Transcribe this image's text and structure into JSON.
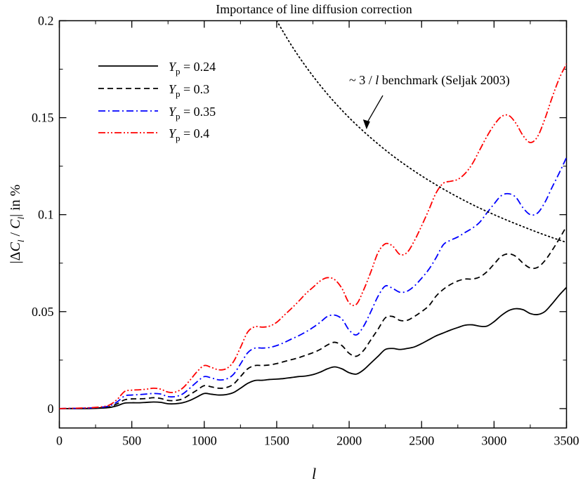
{
  "chart_data": {
    "type": "line",
    "title": "Importance of line diffusion correction",
    "xlabel": "l",
    "ylabel_parts": {
      "open_bar": "|",
      "delta": "Δ",
      "c_upper": "C",
      "sub_l": "l",
      "slash": " / ",
      "suffix": "| in %"
    },
    "xlim": [
      0,
      3500
    ],
    "ylim": [
      -0.01,
      0.2
    ],
    "xticks": [
      0,
      500,
      1000,
      1500,
      2000,
      2500,
      3000,
      3500
    ],
    "yticks": [
      0,
      0.05,
      0.1,
      0.15,
      0.2
    ],
    "ytick_labels": [
      "0",
      "0.05",
      "0.1",
      "0.15",
      "0.2"
    ],
    "legend_position": "top-left",
    "series": [
      {
        "name": "Y_p = 0.24",
        "label_main": "Y",
        "label_sub": "p",
        "label_value": " = 0.24",
        "color": "#000000",
        "dash": "solid",
        "x": [
          0,
          200,
          300,
          350,
          400,
          450,
          500,
          550,
          600,
          650,
          700,
          750,
          800,
          850,
          900,
          950,
          1000,
          1050,
          1100,
          1150,
          1200,
          1250,
          1300,
          1350,
          1400,
          1450,
          1500,
          1550,
          1600,
          1650,
          1700,
          1750,
          1800,
          1850,
          1900,
          1950,
          2000,
          2050,
          2100,
          2150,
          2200,
          2250,
          2300,
          2350,
          2400,
          2450,
          2500,
          2550,
          2600,
          2650,
          2700,
          2750,
          2800,
          2850,
          2900,
          2950,
          3000,
          3050,
          3100,
          3150,
          3200,
          3250,
          3300,
          3350,
          3400,
          3450,
          3500
        ],
        "y": [
          0,
          0,
          0.0003,
          0.0006,
          0.0015,
          0.0028,
          0.003,
          0.003,
          0.0032,
          0.0034,
          0.0032,
          0.0025,
          0.0025,
          0.003,
          0.0042,
          0.006,
          0.0078,
          0.0074,
          0.007,
          0.0072,
          0.0082,
          0.0105,
          0.013,
          0.0145,
          0.0146,
          0.015,
          0.0152,
          0.0155,
          0.016,
          0.0165,
          0.0168,
          0.0175,
          0.0188,
          0.0205,
          0.0215,
          0.0205,
          0.0185,
          0.0178,
          0.02,
          0.0235,
          0.027,
          0.0305,
          0.031,
          0.0305,
          0.031,
          0.0318,
          0.0335,
          0.0355,
          0.0375,
          0.039,
          0.0405,
          0.0418,
          0.043,
          0.0432,
          0.0425,
          0.0425,
          0.0448,
          0.048,
          0.0505,
          0.0515,
          0.051,
          0.049,
          0.0485,
          0.05,
          0.054,
          0.0585,
          0.0625
        ]
      },
      {
        "name": "Y_p = 0.3",
        "label_main": "Y",
        "label_sub": "p",
        "label_value": " = 0.3",
        "color": "#000000",
        "dash": "dashed",
        "x": [
          0,
          200,
          300,
          350,
          400,
          450,
          500,
          550,
          600,
          650,
          700,
          750,
          800,
          850,
          900,
          950,
          1000,
          1050,
          1100,
          1150,
          1200,
          1250,
          1300,
          1350,
          1400,
          1450,
          1500,
          1550,
          1600,
          1650,
          1700,
          1750,
          1800,
          1850,
          1900,
          1950,
          2000,
          2050,
          2100,
          2150,
          2200,
          2250,
          2300,
          2350,
          2400,
          2450,
          2500,
          2550,
          2600,
          2650,
          2700,
          2750,
          2800,
          2850,
          2900,
          2950,
          3000,
          3050,
          3100,
          3150,
          3200,
          3250,
          3300,
          3350,
          3400,
          3450,
          3500
        ],
        "y": [
          0,
          0.0002,
          0.0005,
          0.001,
          0.0025,
          0.0045,
          0.005,
          0.005,
          0.0052,
          0.0056,
          0.0052,
          0.0042,
          0.0042,
          0.005,
          0.0072,
          0.0095,
          0.0118,
          0.0112,
          0.0105,
          0.0108,
          0.0125,
          0.0165,
          0.0205,
          0.0222,
          0.0222,
          0.0225,
          0.0232,
          0.0242,
          0.0252,
          0.0262,
          0.0275,
          0.0288,
          0.0305,
          0.0328,
          0.0342,
          0.0325,
          0.0285,
          0.027,
          0.03,
          0.0355,
          0.041,
          0.0468,
          0.0475,
          0.0455,
          0.0455,
          0.0475,
          0.05,
          0.053,
          0.058,
          0.0615,
          0.064,
          0.0658,
          0.0668,
          0.0668,
          0.0678,
          0.0705,
          0.0745,
          0.0785,
          0.0798,
          0.0785,
          0.075,
          0.0725,
          0.0728,
          0.0762,
          0.0815,
          0.0875,
          0.094
        ]
      },
      {
        "name": "Y_p = 0.35",
        "label_main": "Y",
        "label_sub": "p",
        "label_value": " = 0.35",
        "color": "#0000ff",
        "dash": "dashdot",
        "x": [
          0,
          200,
          300,
          350,
          400,
          450,
          500,
          550,
          600,
          650,
          700,
          750,
          800,
          850,
          900,
          950,
          1000,
          1050,
          1100,
          1150,
          1200,
          1250,
          1300,
          1350,
          1400,
          1450,
          1500,
          1550,
          1600,
          1650,
          1700,
          1750,
          1800,
          1850,
          1900,
          1950,
          2000,
          2050,
          2100,
          2150,
          2200,
          2250,
          2300,
          2350,
          2400,
          2450,
          2500,
          2550,
          2600,
          2650,
          2700,
          2750,
          2800,
          2850,
          2900,
          2950,
          3000,
          3050,
          3100,
          3150,
          3200,
          3250,
          3300,
          3350,
          3400,
          3450,
          3500
        ],
        "y": [
          0,
          0.0003,
          0.0008,
          0.0015,
          0.0035,
          0.0065,
          0.007,
          0.0072,
          0.0075,
          0.0078,
          0.0075,
          0.0062,
          0.0062,
          0.0075,
          0.0105,
          0.0138,
          0.0165,
          0.0158,
          0.0148,
          0.0152,
          0.0175,
          0.023,
          0.0288,
          0.0312,
          0.0312,
          0.0315,
          0.0325,
          0.034,
          0.0358,
          0.0375,
          0.0395,
          0.0418,
          0.0445,
          0.0475,
          0.0482,
          0.0462,
          0.0405,
          0.038,
          0.0425,
          0.05,
          0.058,
          0.0632,
          0.062,
          0.06,
          0.0605,
          0.0632,
          0.0672,
          0.0718,
          0.0778,
          0.0845,
          0.0868,
          0.0885,
          0.0908,
          0.093,
          0.096,
          0.1008,
          0.1055,
          0.1098,
          0.1108,
          0.109,
          0.1035,
          0.1,
          0.1008,
          0.1062,
          0.114,
          0.1215,
          0.1295
        ]
      },
      {
        "name": "Y_p = 0.4",
        "label_main": "Y",
        "label_sub": "p",
        "label_value": " = 0.4",
        "color": "#ff0000",
        "dash": "dashdotdot",
        "x": [
          0,
          200,
          300,
          350,
          400,
          450,
          500,
          550,
          600,
          650,
          700,
          750,
          800,
          850,
          900,
          950,
          1000,
          1050,
          1100,
          1150,
          1200,
          1250,
          1300,
          1350,
          1400,
          1450,
          1500,
          1550,
          1600,
          1650,
          1700,
          1750,
          1800,
          1850,
          1900,
          1950,
          2000,
          2050,
          2100,
          2150,
          2200,
          2250,
          2300,
          2350,
          2400,
          2450,
          2500,
          2550,
          2600,
          2650,
          2700,
          2750,
          2800,
          2850,
          2900,
          2950,
          3000,
          3050,
          3100,
          3150,
          3200,
          3250,
          3300,
          3350,
          3400,
          3450,
          3500
        ],
        "y": [
          0,
          0.0004,
          0.001,
          0.002,
          0.0048,
          0.0088,
          0.0095,
          0.0097,
          0.01,
          0.0105,
          0.01,
          0.0085,
          0.0085,
          0.0105,
          0.0145,
          0.019,
          0.0222,
          0.0212,
          0.02,
          0.0205,
          0.024,
          0.0315,
          0.0395,
          0.0422,
          0.042,
          0.0425,
          0.0445,
          0.048,
          0.0515,
          0.0552,
          0.0592,
          0.0625,
          0.0658,
          0.0675,
          0.0665,
          0.062,
          0.0545,
          0.0538,
          0.0612,
          0.0705,
          0.0805,
          0.085,
          0.0838,
          0.0795,
          0.0805,
          0.0865,
          0.0942,
          0.1025,
          0.1112,
          0.1162,
          0.1172,
          0.1182,
          0.1212,
          0.1262,
          0.1332,
          0.1402,
          0.1462,
          0.1505,
          0.1512,
          0.1472,
          0.1408,
          0.1372,
          0.1402,
          0.1492,
          0.1602,
          0.1702,
          0.1778
        ]
      },
      {
        "name": "benchmark",
        "label_main": "",
        "label_sub": "",
        "label_value": "",
        "color": "#000000",
        "dash": "dotted",
        "x": [
          1500,
          1600,
          1700,
          1800,
          1900,
          2000,
          2100,
          2200,
          2300,
          2400,
          2500,
          2600,
          2700,
          2800,
          2900,
          3000,
          3100,
          3200,
          3300,
          3400,
          3500
        ],
        "y": [
          0.2,
          0.1875,
          0.1765,
          0.1667,
          0.1579,
          0.15,
          0.1429,
          0.1364,
          0.1304,
          0.125,
          0.12,
          0.1154,
          0.1111,
          0.1071,
          0.1034,
          0.1,
          0.0968,
          0.0938,
          0.0909,
          0.0882,
          0.0857
        ]
      }
    ],
    "annotation": {
      "prefix": "~ 3 / ",
      "var": "l",
      "suffix": "  benchmark (Seljak 2003)",
      "target_x": 2120,
      "target_y": 0.144
    }
  }
}
